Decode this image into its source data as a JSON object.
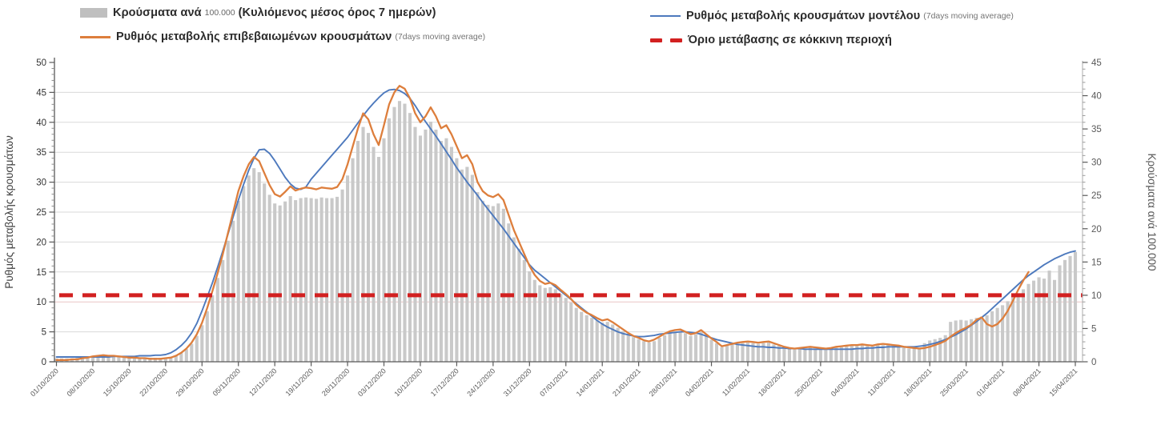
{
  "legend": {
    "items": [
      {
        "id": "cases-bars",
        "swatch": "bar",
        "color": "#bfbfbf",
        "text_main": "Κρούσματα ανά",
        "text_small": "100.000",
        "text_tail": "(Κυλιόμενος μέσος όρος 7 ημερών)"
      },
      {
        "id": "model-rate",
        "swatch": "line",
        "color": "#4d79bd",
        "text_main": "Ρυθμός μεταβολής κρουσμάτων μοντέλου",
        "text_small": "(7days moving average)"
      },
      {
        "id": "confirmed-rate",
        "swatch": "line",
        "color": "#dd7e3c",
        "text_main": "Ρυθμός μεταβολής επιβεβαιωμένων κρουσμάτων",
        "text_small": "(7days moving average)"
      },
      {
        "id": "red-threshold",
        "swatch": "dashes",
        "color": "#d22020",
        "text_main": "Όριο μετάβασης σε κόκκινη περιοχή"
      }
    ]
  },
  "chart_data": {
    "type": "combo: daily bars + 2 lines + threshold line",
    "days": 197,
    "x_tick_labels": [
      "01/10/2020",
      "08/10/2020",
      "15/10/2020",
      "22/10/2020",
      "29/10/2020",
      "05/11/2020",
      "12/11/2020",
      "19/11/2020",
      "26/11/2020",
      "03/12/2020",
      "10/12/2020",
      "17/12/2020",
      "24/12/2020",
      "31/12/2020",
      "07/01/2021",
      "14/01/2021",
      "21/01/2021",
      "28/01/2021",
      "04/02/2021",
      "11/02/2021",
      "18/02/2021",
      "25/02/2021",
      "04/03/2021",
      "11/03/2021",
      "18/03/2021",
      "25/03/2021",
      "01/04/2021",
      "08/04/2021",
      "15/04/2021"
    ],
    "left_axis": {
      "title": "Ρυθμός μεταβολής κρουσμάτων",
      "min": 0,
      "max": 50,
      "tick_step": 5,
      "ticks": [
        0,
        5,
        10,
        15,
        20,
        25,
        30,
        35,
        40,
        45,
        50
      ]
    },
    "right_axis": {
      "title": "Κρούσματα ανά 100.000",
      "min": 0,
      "max": 45,
      "tick_step": 5,
      "ticks": [
        0,
        5,
        10,
        15,
        20,
        25,
        30,
        35,
        40,
        45
      ]
    },
    "threshold": {
      "axis": "right",
      "value": 10,
      "label": "Όριο μετάβασης σε κόκκινη περιοχή"
    },
    "pink_gridline_at_left_value": 10,
    "legend_position": "top",
    "grid": "horizontal only",
    "colors": {
      "bar": "#c9c9c9",
      "model_line": "#4d79bd",
      "confirmed_line": "#dd7e3c",
      "threshold": "#d22020",
      "gridline": "#dadada",
      "gridline_pink": "#eac6c6",
      "axis": "#595959",
      "right_axis_line": "#ababab",
      "tick_label": "#333333",
      "x_label": "#595959",
      "axis_title": "#404040"
    },
    "series": [
      {
        "name": "Κρούσματα ανά 100.000 (Κυλιόμενος μέσος όρος 7 ημερών)",
        "type": "bar",
        "axis": "right",
        "values": [
          0.5,
          0.5,
          0.5,
          0.5,
          0.6,
          0.7,
          0.8,
          0.9,
          1.0,
          1.1,
          1.0,
          0.9,
          0.9,
          0.8,
          0.7,
          0.7,
          0.6,
          0.6,
          0.6,
          0.6,
          0.6,
          0.6,
          0.7,
          0.9,
          1.3,
          1.9,
          2.7,
          3.9,
          5.5,
          7.6,
          10.0,
          12.6,
          15.3,
          18.2,
          21.2,
          24.2,
          26.4,
          28.0,
          29.1,
          28.5,
          26.8,
          25.1,
          23.8,
          23.5,
          24.1,
          24.9,
          24.3,
          24.6,
          24.7,
          24.6,
          24.5,
          24.7,
          24.6,
          24.6,
          24.8,
          25.9,
          28.0,
          30.6,
          33.2,
          35.3,
          34.4,
          32.3,
          30.8,
          33.6,
          36.6,
          38.3,
          39.2,
          38.8,
          37.4,
          35.3,
          34.0,
          34.9,
          36.1,
          34.9,
          33.2,
          33.6,
          32.3,
          30.6,
          28.9,
          29.3,
          28.1,
          25.5,
          24.2,
          23.6,
          23.4,
          23.8,
          23.0,
          20.8,
          18.7,
          17.0,
          15.3,
          13.6,
          12.3,
          11.5,
          11.1,
          11.2,
          10.9,
          10.2,
          9.6,
          8.9,
          8.1,
          7.5,
          7.0,
          6.6,
          6.2,
          5.9,
          6.0,
          5.6,
          5.1,
          4.6,
          4.1,
          3.7,
          3.4,
          3.1,
          2.9,
          3.1,
          3.6,
          4.0,
          4.3,
          4.5,
          4.6,
          4.3,
          3.9,
          4.1,
          4.5,
          3.9,
          3.3,
          2.8,
          2.2,
          2.4,
          2.6,
          2.7,
          2.8,
          2.9,
          2.8,
          2.7,
          2.8,
          2.9,
          2.6,
          2.4,
          2.1,
          2.0,
          1.9,
          2.0,
          2.0,
          2.1,
          2.0,
          2.0,
          1.9,
          2.0,
          2.1,
          2.2,
          2.3,
          2.4,
          2.4,
          2.5,
          2.4,
          2.3,
          2.5,
          2.5,
          2.5,
          2.4,
          2.3,
          2.1,
          2.0,
          2.0,
          2.1,
          2.8,
          3.2,
          3.4,
          3.6,
          4.0,
          6.0,
          6.2,
          6.3,
          6.2,
          6.4,
          6.6,
          6.8,
          7.0,
          7.6,
          8.1,
          8.5,
          9.1,
          9.7,
          10.3,
          10.9,
          11.7,
          12.2,
          12.7,
          12.5,
          13.7,
          12.3,
          14.5,
          15.3,
          15.9,
          16.5
        ]
      },
      {
        "name": "Ρυθμός μεταβολής επιβεβαιωμένων κρουσμάτων (7days moving average)",
        "type": "line",
        "axis": "left",
        "values": [
          0.3,
          0.3,
          0.3,
          0.4,
          0.4,
          0.6,
          0.7,
          0.9,
          1.0,
          1.1,
          1.0,
          1.0,
          0.9,
          0.8,
          0.7,
          0.7,
          0.6,
          0.6,
          0.5,
          0.5,
          0.5,
          0.6,
          0.7,
          1.0,
          1.5,
          2.2,
          3.2,
          4.6,
          6.5,
          9.0,
          11.8,
          14.8,
          18.0,
          21.5,
          25.0,
          28.5,
          31.0,
          33.0,
          34.2,
          33.5,
          31.5,
          29.5,
          28.0,
          27.6,
          28.4,
          29.3,
          28.6,
          28.9,
          29.1,
          29.0,
          28.8,
          29.1,
          29.0,
          28.9,
          29.2,
          30.5,
          33.0,
          36.0,
          39.0,
          41.5,
          40.5,
          38.0,
          36.2,
          39.5,
          43.0,
          45.0,
          46.1,
          45.6,
          44.0,
          41.5,
          40.0,
          41.0,
          42.5,
          41.0,
          39.0,
          39.5,
          38.0,
          36.0,
          34.0,
          34.5,
          33.0,
          30.0,
          28.5,
          27.8,
          27.5,
          28.0,
          27.0,
          24.5,
          22.0,
          20.0,
          18.0,
          16.0,
          14.5,
          13.5,
          13.0,
          13.2,
          12.8,
          12.0,
          11.3,
          10.5,
          9.5,
          8.8,
          8.2,
          7.8,
          7.3,
          6.9,
          7.1,
          6.6,
          6.0,
          5.4,
          4.8,
          4.3,
          4.0,
          3.6,
          3.4,
          3.7,
          4.2,
          4.7,
          5.1,
          5.3,
          5.4,
          5.0,
          4.6,
          4.8,
          5.3,
          4.6,
          3.9,
          3.3,
          2.6,
          2.8,
          3.0,
          3.2,
          3.3,
          3.4,
          3.3,
          3.2,
          3.3,
          3.4,
          3.1,
          2.8,
          2.5,
          2.3,
          2.2,
          2.3,
          2.4,
          2.5,
          2.4,
          2.3,
          2.2,
          2.3,
          2.5,
          2.6,
          2.7,
          2.8,
          2.8,
          2.9,
          2.8,
          2.7,
          2.9,
          3.0,
          2.9,
          2.8,
          2.7,
          2.5,
          2.4,
          2.3,
          2.2,
          2.3,
          2.5,
          2.8,
          3.1,
          3.5,
          4.2,
          4.8,
          5.3,
          5.7,
          6.2,
          7.0,
          7.4,
          6.3,
          5.9,
          6.3,
          7.2,
          8.5,
          10.2,
          12.0,
          13.6,
          15.0,
          null,
          null,
          null,
          null,
          null,
          null,
          null,
          null,
          null
        ]
      },
      {
        "name": "Ρυθμός μεταβολής κρουσμάτων μοντέλου (7days moving average)",
        "type": "line",
        "axis": "left",
        "values": [
          0.8,
          0.8,
          0.8,
          0.8,
          0.8,
          0.8,
          0.8,
          0.8,
          0.8,
          0.8,
          0.8,
          0.9,
          0.9,
          0.9,
          0.9,
          0.9,
          1.0,
          1.0,
          1.0,
          1.1,
          1.1,
          1.2,
          1.5,
          2.0,
          2.7,
          3.6,
          4.8,
          6.4,
          8.5,
          10.8,
          13.2,
          15.8,
          18.5,
          21.3,
          24.2,
          27.0,
          29.6,
          32.0,
          34.0,
          35.4,
          35.5,
          34.8,
          33.6,
          32.2,
          30.8,
          29.7,
          29.0,
          28.8,
          29.2,
          30.5,
          31.5,
          32.5,
          33.5,
          34.5,
          35.5,
          36.5,
          37.5,
          38.7,
          39.9,
          41.1,
          42.2,
          43.2,
          44.1,
          44.9,
          45.4,
          45.5,
          45.3,
          44.8,
          44.0,
          42.8,
          41.4,
          40.1,
          38.9,
          37.7,
          36.4,
          35.1,
          33.8,
          32.4,
          31.2,
          30.0,
          28.9,
          27.8,
          26.6,
          25.5,
          24.4,
          23.3,
          22.2,
          21.0,
          19.8,
          18.6,
          17.4,
          16.2,
          15.3,
          14.6,
          13.9,
          13.2,
          12.5,
          11.8,
          11.1,
          10.4,
          9.7,
          9.0,
          8.3,
          7.6,
          6.9,
          6.3,
          5.8,
          5.4,
          5.0,
          4.7,
          4.5,
          4.3,
          4.2,
          4.2,
          4.3,
          4.4,
          4.6,
          4.7,
          4.8,
          4.9,
          5.0,
          5.0,
          4.9,
          4.8,
          4.6,
          4.3,
          4.0,
          3.7,
          3.5,
          3.3,
          3.1,
          2.9,
          2.8,
          2.7,
          2.6,
          2.5,
          2.5,
          2.4,
          2.4,
          2.3,
          2.3,
          2.2,
          2.2,
          2.2,
          2.1,
          2.1,
          2.1,
          2.1,
          2.1,
          2.1,
          2.1,
          2.1,
          2.1,
          2.1,
          2.2,
          2.2,
          2.3,
          2.3,
          2.4,
          2.4,
          2.5,
          2.5,
          2.5,
          2.5,
          2.5,
          2.5,
          2.6,
          2.7,
          2.9,
          3.1,
          3.4,
          3.7,
          4.1,
          4.5,
          5.0,
          5.5,
          6.1,
          6.7,
          7.4,
          8.1,
          8.9,
          9.7,
          10.5,
          11.3,
          12.1,
          12.9,
          13.7,
          14.4,
          15.0,
          15.6,
          16.2,
          16.7,
          17.2,
          17.6,
          18.0,
          18.3,
          18.5
        ]
      }
    ]
  }
}
